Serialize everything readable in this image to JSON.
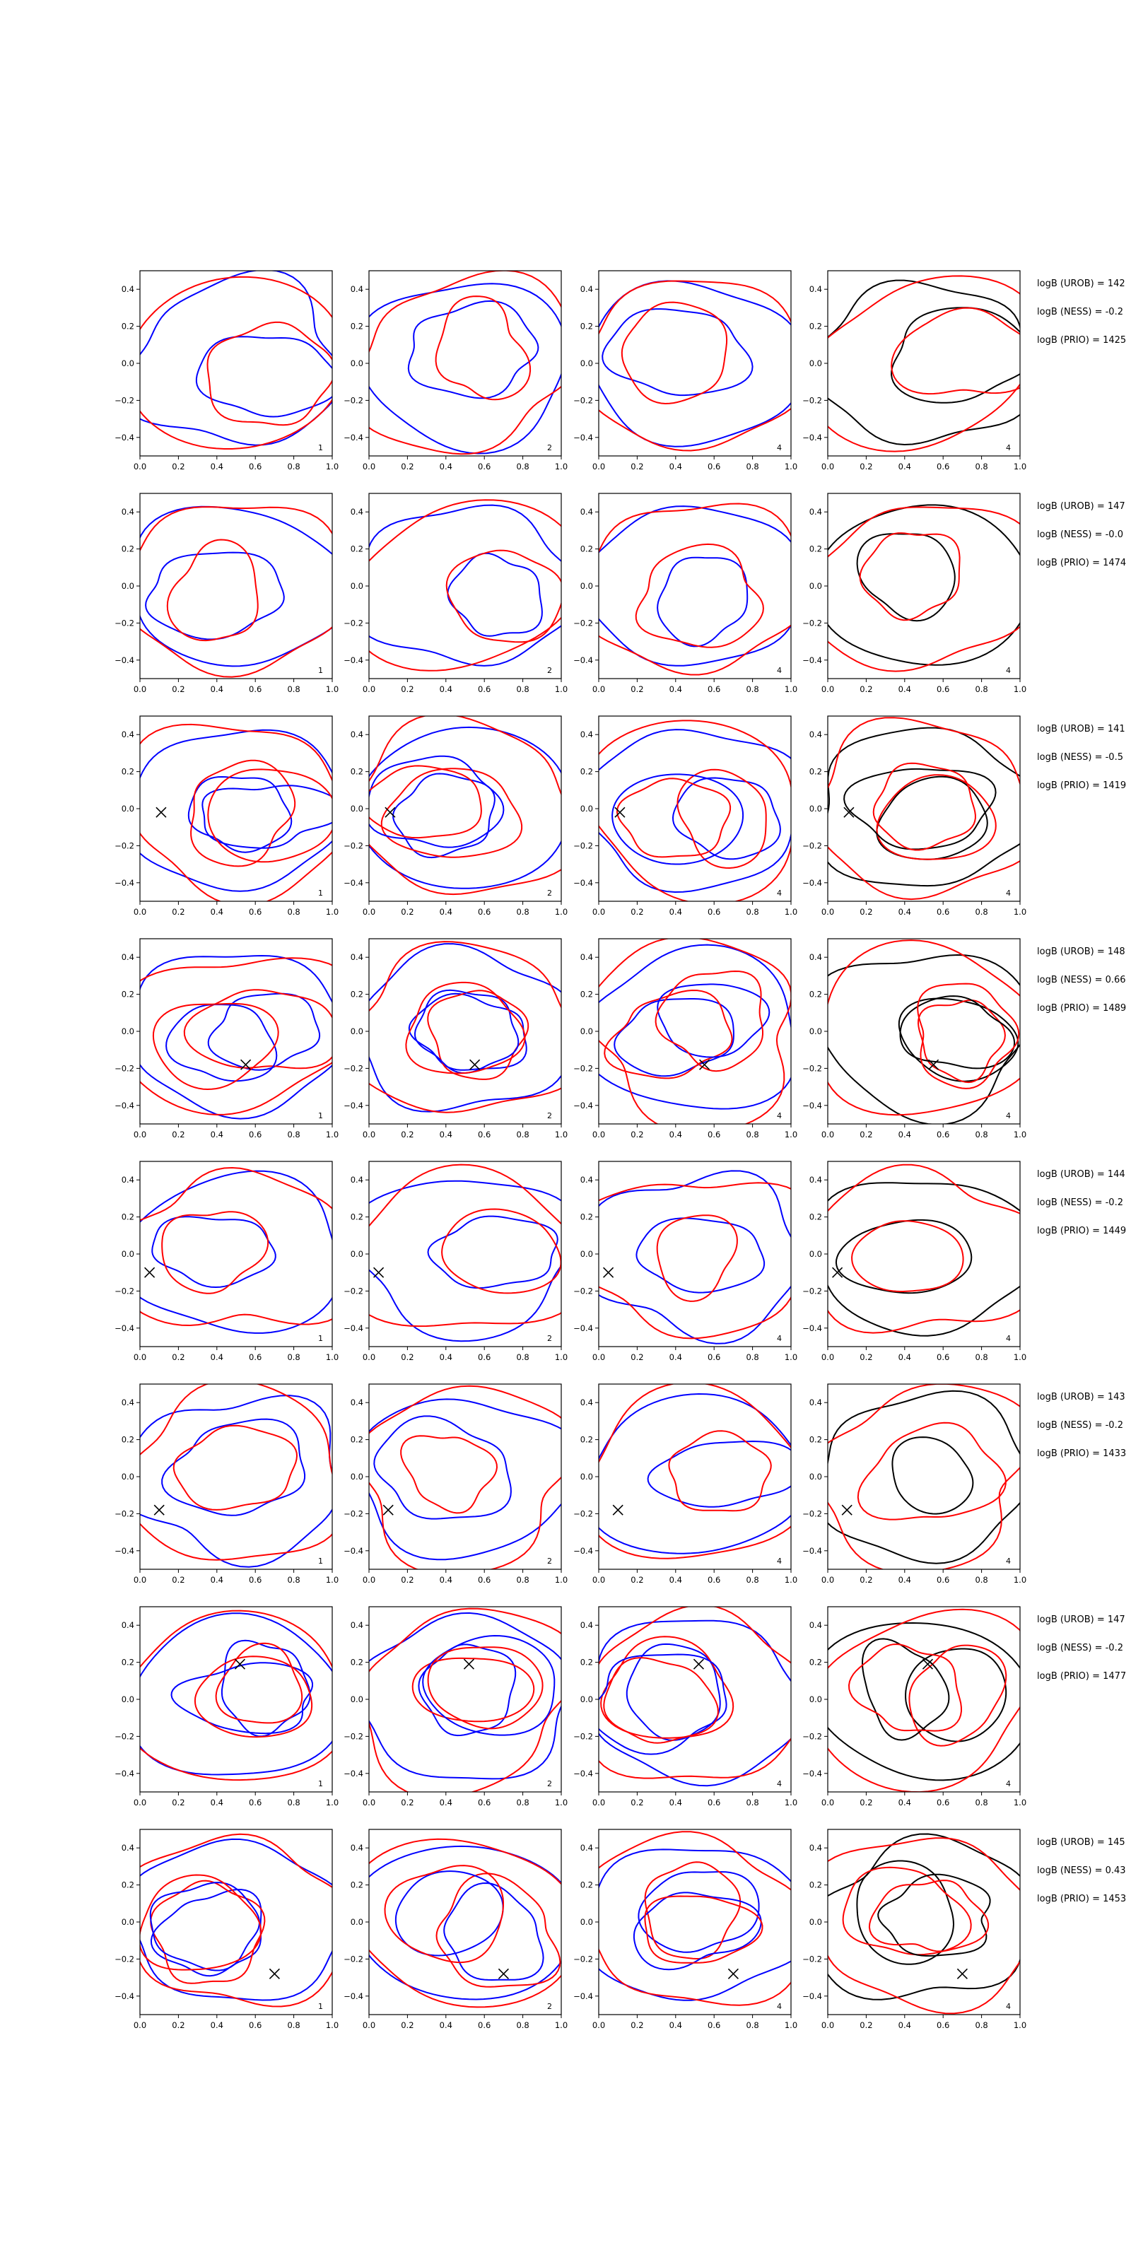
{
  "colors": {
    "blue": "#0000ff",
    "red": "#ff0000",
    "black": "#000000"
  },
  "axes": {
    "xlim": [
      0.0,
      1.0
    ],
    "ylim": [
      -0.5,
      0.5
    ],
    "xticks": [
      "0.0",
      "0.2",
      "0.4",
      "0.6",
      "0.8",
      "1.0"
    ],
    "yticks": [
      "−0.4",
      "−0.2",
      "0.0",
      "0.2",
      "0.4"
    ]
  },
  "chart_data": {
    "type": "line",
    "layout": "8 rows x 4 columns of contour panels",
    "grid": false,
    "column_primary_color": [
      "blue",
      "blue",
      "blue",
      "black"
    ],
    "column_index_label": [
      "1",
      "2",
      "4",
      "4"
    ],
    "rows": [
      {
        "marker": null,
        "annotations": [
          "logB (UROB) = 142",
          "logB (NESS) = -0.2",
          "logB (PRIO) = 1425"
        ]
      },
      {
        "marker": null,
        "annotations": [
          "logB (UROB) = 147",
          "logB (NESS) = -0.0",
          "logB (PRIO) = 1474"
        ]
      },
      {
        "marker": [
          0.11,
          -0.02
        ],
        "annotations": [
          "logB (UROB) = 141",
          "logB (NESS) = -0.5",
          "logB (PRIO) = 1419"
        ]
      },
      {
        "marker": [
          0.55,
          -0.18
        ],
        "annotations": [
          "logB (UROB) = 148",
          "logB (NESS) = 0.66",
          "logB (PRIO) = 1489"
        ]
      },
      {
        "marker": [
          0.05,
          -0.1
        ],
        "annotations": [
          "logB (UROB) = 144",
          "logB (NESS) = -0.2",
          "logB (PRIO) = 1449"
        ]
      },
      {
        "marker": [
          0.1,
          -0.18
        ],
        "annotations": [
          "logB (UROB) = 143",
          "logB (NESS) = -0.2",
          "logB (PRIO) = 1433"
        ]
      },
      {
        "marker": [
          0.52,
          0.19
        ],
        "annotations": [
          "logB (UROB) = 147",
          "logB (NESS) = -0.2",
          "logB (PRIO) = 1477"
        ]
      },
      {
        "marker": [
          0.7,
          -0.28
        ],
        "annotations": [
          "logB (UROB) = 145",
          "logB (NESS) = 0.43",
          "logB (PRIO) = 1453"
        ]
      }
    ]
  }
}
